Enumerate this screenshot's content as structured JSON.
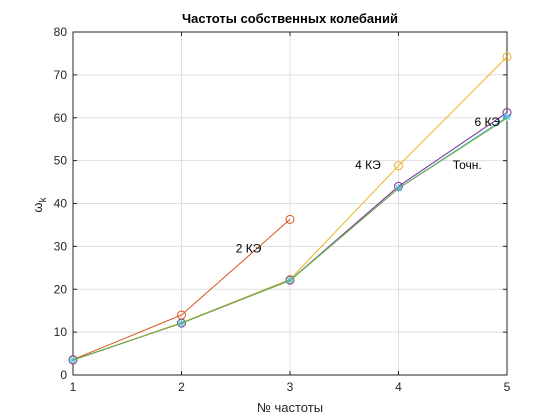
{
  "chart_data": {
    "type": "line",
    "title": "Частоты собственных колебаний",
    "xlabel": "№ частоты",
    "ylabel_symbol": "ω",
    "ylabel_subscript": "k",
    "xlim": [
      1,
      5
    ],
    "ylim": [
      0,
      80
    ],
    "xticks": [
      1,
      2,
      3,
      4,
      5
    ],
    "yticks": [
      0,
      10,
      20,
      30,
      40,
      50,
      60,
      70,
      80
    ],
    "grid": true,
    "series": [
      {
        "x": [
          1,
          2,
          3
        ],
        "y": [
          3.6,
          14.0,
          36.3
        ],
        "color": "#D95319",
        "marker": "circle"
      },
      {
        "x": [
          1,
          2,
          3,
          4,
          5
        ],
        "y": [
          3.5,
          12.2,
          22.3,
          48.8,
          74.2
        ],
        "color": "#EDB120",
        "marker": "circle"
      },
      {
        "x": [
          1,
          2,
          3,
          4,
          5
        ],
        "y": [
          3.5,
          12.1,
          22.1,
          44.0,
          61.2
        ],
        "color": "#7E2F8E",
        "marker": "circle"
      },
      {
        "x": [
          1,
          2,
          3,
          4,
          5
        ],
        "y": [
          3.5,
          12.1,
          22.1,
          43.6,
          60.2
        ],
        "color": "#4DBEEE",
        "marker": "star"
      },
      {
        "x": [
          1,
          2,
          3,
          4,
          5
        ],
        "y": [
          3.5,
          12.1,
          22.0,
          43.5,
          59.9
        ],
        "color": "#77AC30",
        "marker": "none"
      }
    ],
    "annotations": [
      {
        "text": "2 КЭ",
        "x": 2.5,
        "y": 29.5
      },
      {
        "text": "4 КЭ",
        "x": 3.6,
        "y": 49.0
      },
      {
        "text": "6 КЭ",
        "x": 4.7,
        "y": 59.0
      },
      {
        "text": "Точн.",
        "x": 4.5,
        "y": 49.0
      }
    ]
  }
}
